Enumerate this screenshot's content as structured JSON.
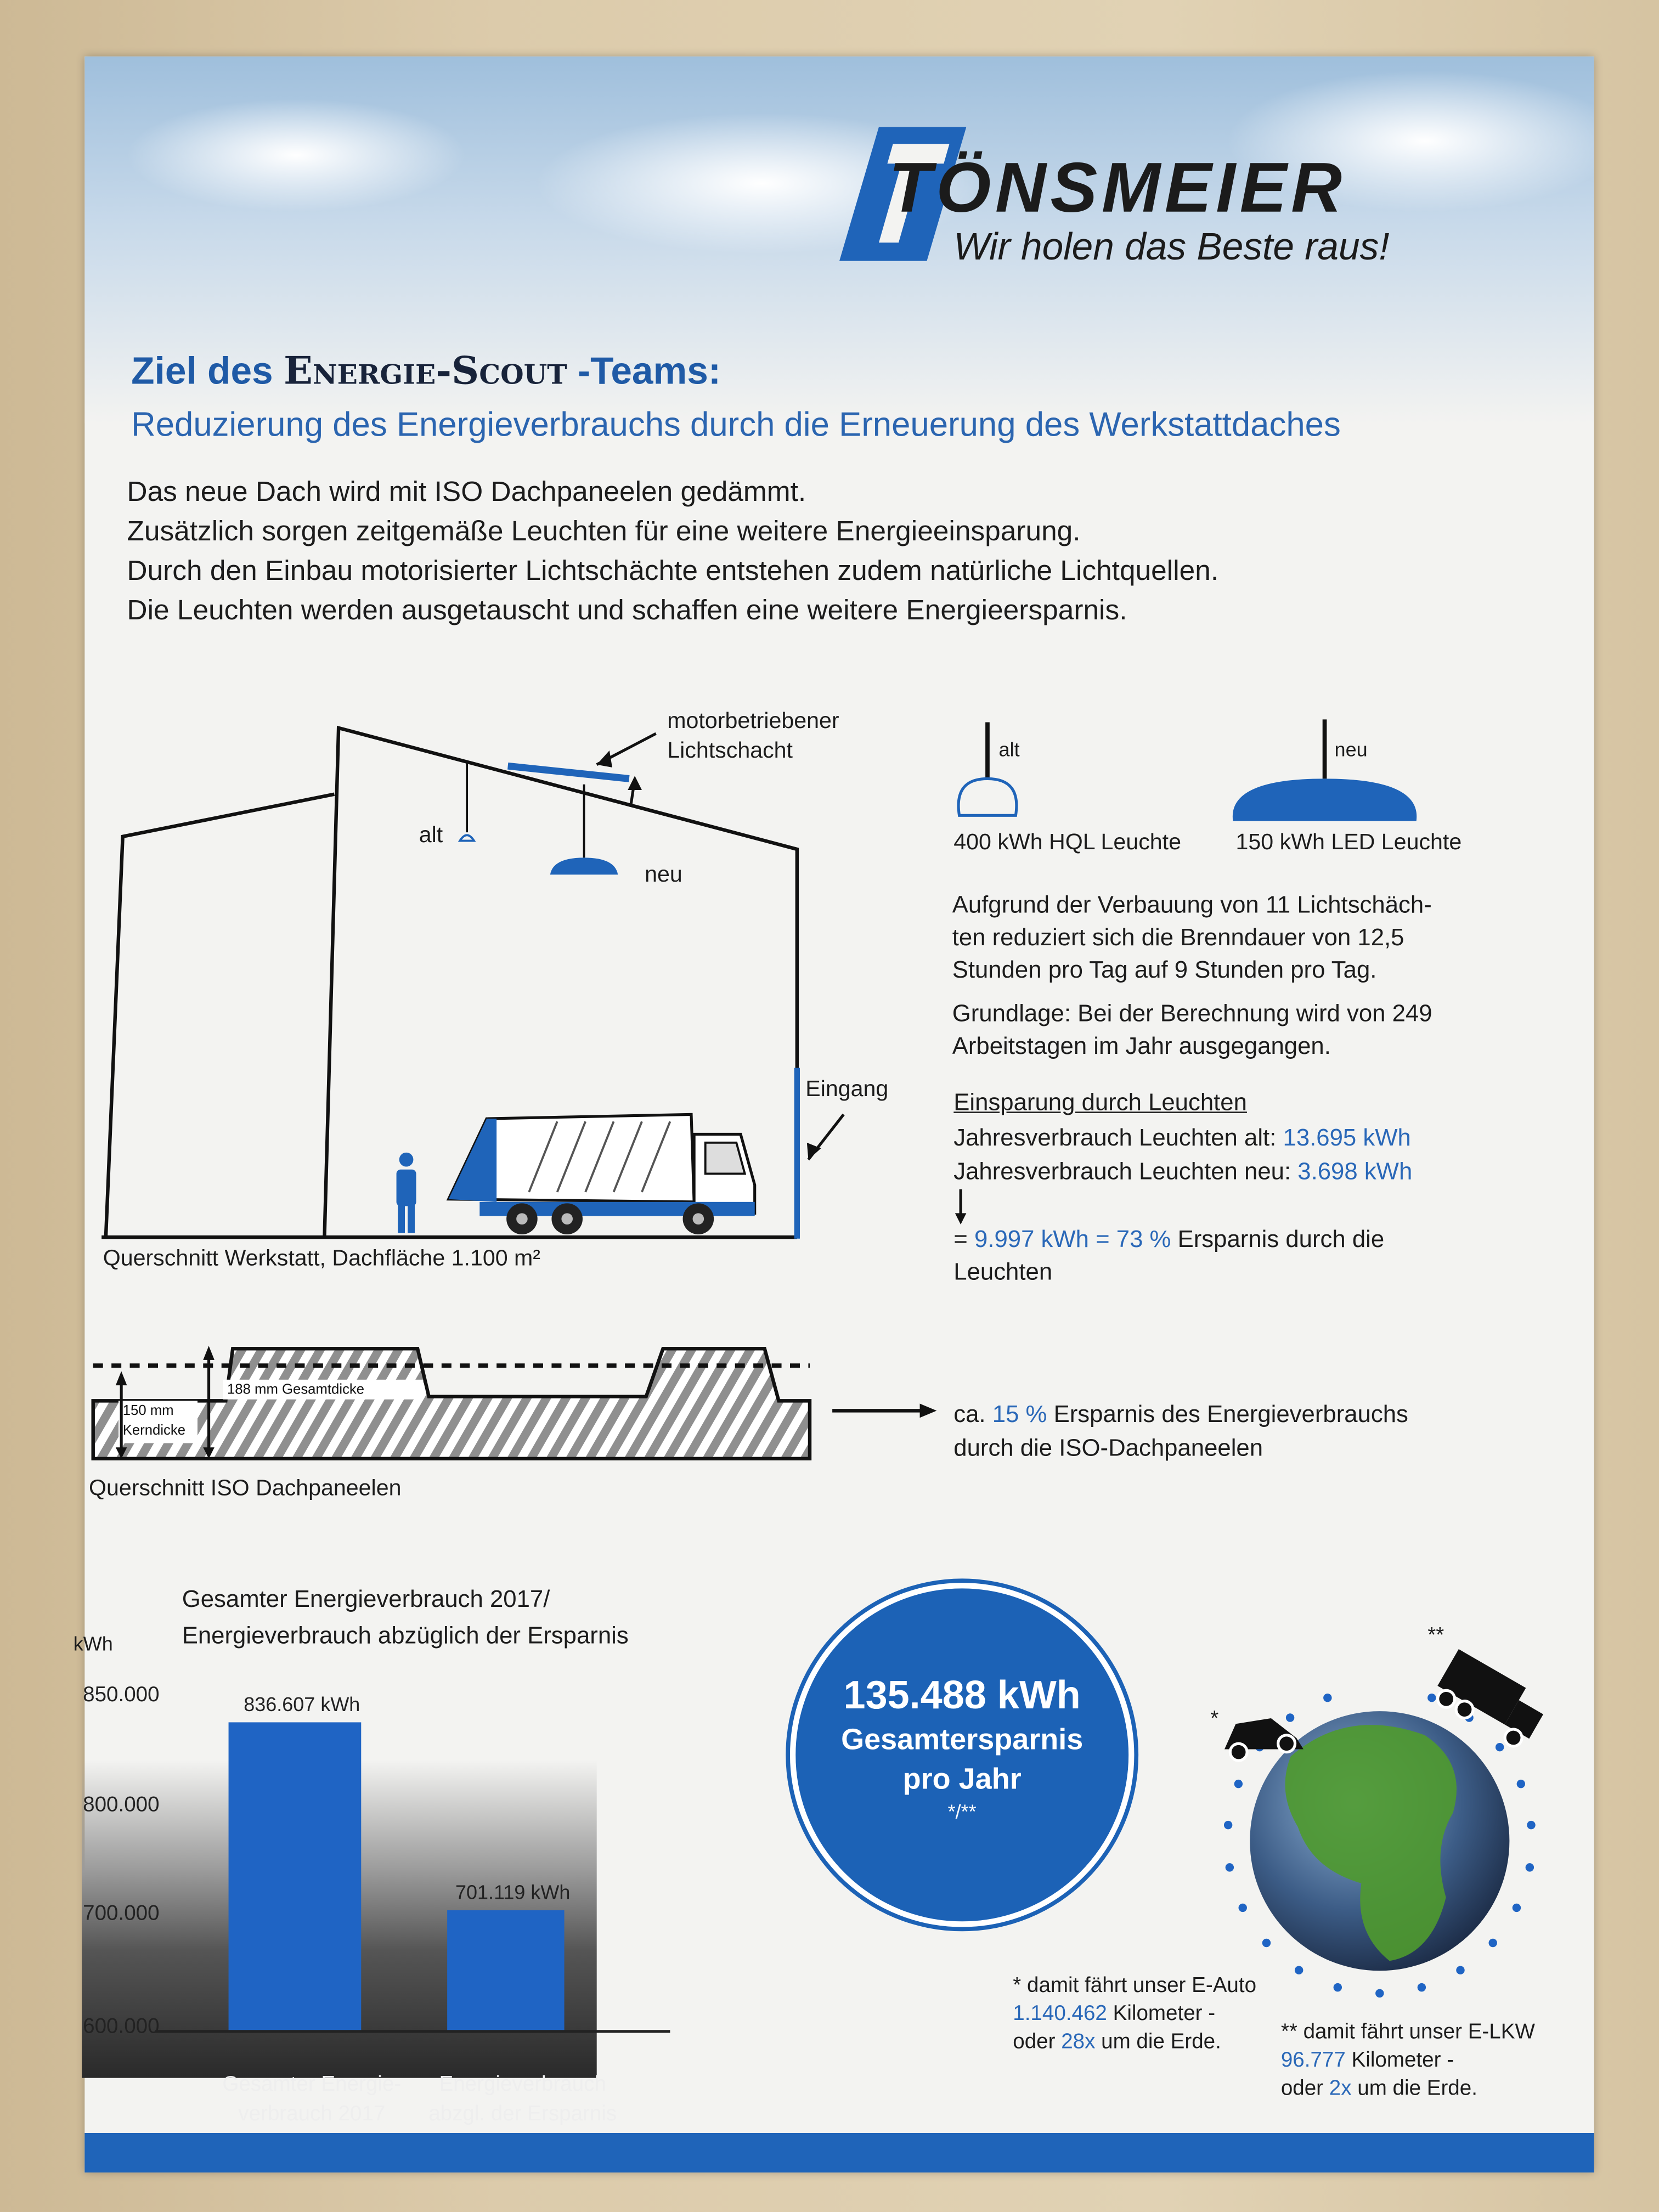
{
  "brand": {
    "name": "TÖNSMEIER",
    "slogan": "Wir holen das Beste raus!",
    "accent_color": "#1f64b9"
  },
  "header": {
    "title_prefix": "Ziel des",
    "title_scout": "Energie-Scout",
    "title_suffix": "-Teams:",
    "subtitle": "Reduzierung des Energieverbrauchs durch die Erneuerung des Werkstattdaches"
  },
  "intro": [
    "Das neue Dach wird mit ISO Dachpaneelen gedämmt.",
    "Zusätzlich sorgen zeitgemäße Leuchten für eine weitere Energieeinsparung.",
    "Durch den Einbau motorisierter Lichtschächte entstehen zudem natürliche Lichtquellen.",
    "Die Leuchten werden ausgetauscht und schaffen eine weitere Energieersparnis."
  ],
  "building_diagram": {
    "skylight_label_1": "motorbetriebener",
    "skylight_label_2": "Lichtschacht",
    "lamp_old": "alt",
    "lamp_new": "neu",
    "entrance": "Eingang",
    "caption": "Querschnitt Werkstatt, Dachfläche 1.100 m²"
  },
  "lamps": {
    "old_tag": "alt",
    "new_tag": "neu",
    "old_caption": "400 kWh HQL Leuchte",
    "new_caption": "150 kWh LED Leuchte"
  },
  "info": {
    "skylights_1": "Aufgrund der Verbauung von 11 Lichtschäch-",
    "skylights_2": "ten reduziert sich die Brenndauer von 12,5",
    "skylights_3": "Stunden pro Tag auf 9 Stunden pro Tag.",
    "basis_1": "Grundlage: Bei der Berechnung wird von 249",
    "basis_2": "Arbeitstagen im Jahr ausgegangen."
  },
  "savings_lights": {
    "heading": "Einsparung durch Leuchten",
    "old_label": "Jahresverbrauch Leuchten alt:",
    "old_value": "13.695 kWh",
    "new_label": "Jahresverbrauch Leuchten neu:",
    "new_value": "3.698 kWh",
    "eq": "=",
    "result_value": "9.997 kWh = 73 %",
    "result_text": "Ersparnis durch die",
    "result_text_2": "Leuchten"
  },
  "panel_diagram": {
    "total_thickness": "188 mm Gesamtdicke",
    "core_1": "150 mm",
    "core_2": "Kerndicke",
    "caption": "Querschnitt ISO Dachpaneelen",
    "savings_prefix": "ca.",
    "savings_value": "15 %",
    "savings_text": "Ersparnis des Energieverbrauchs",
    "savings_text_2": "durch die ISO-Dachpaneelen"
  },
  "chart_data": {
    "type": "bar",
    "title": "Gesamter Energieverbrauch 2017/ Energieverbrauch abzüglich der Ersparnis",
    "title_line_1": "Gesamter Energieverbrauch 2017/",
    "title_line_2": "Energieverbrauch abzüglich der Ersparnis",
    "ylabel": "kWh",
    "yticks": [
      600000,
      700000,
      800000,
      850000
    ],
    "ytick_labels": [
      "600.000",
      "700.000",
      "800.000",
      "850.000"
    ],
    "ylim": [
      600000,
      850000
    ],
    "categories": [
      [
        "Gesamter Energie-",
        "verbrauch 2017"
      ],
      [
        "Energieverbrauch",
        "abzgl. der Ersparnis"
      ]
    ],
    "values": [
      836607,
      701119
    ],
    "data_labels": [
      "836.607 kWh",
      "701.119 kWh"
    ],
    "bar_color": "#1f64c4",
    "grid": false
  },
  "total": {
    "value": "135.488 kWh",
    "line_2": "Gesamtersparnis",
    "line_3": "pro Jahr",
    "marker": "*/**"
  },
  "footnotes": {
    "car_mark": "*",
    "truck_mark": "**",
    "car_1": "* damit fährt unser E-Auto",
    "car_km": "1.140.462",
    "car_km_text": "Kilometer -",
    "car_oder": "oder",
    "car_times": "28x",
    "car_rest": "um die Erde.",
    "truck_1": "** damit fährt unser E-LKW",
    "truck_km": "96.777",
    "truck_km_text": "Kilometer -",
    "truck_oder": "oder",
    "truck_times": "2x",
    "truck_rest": "um die Erde."
  }
}
